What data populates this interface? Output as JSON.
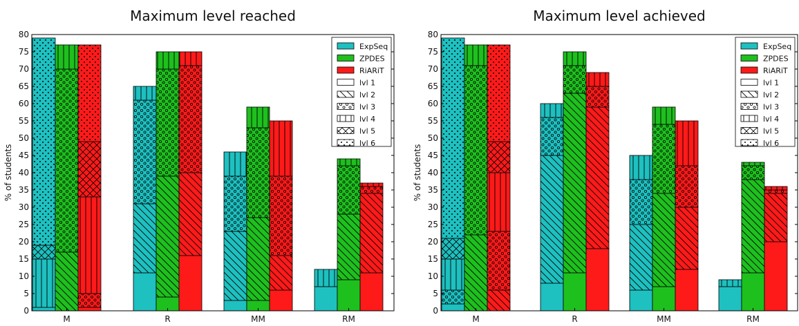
{
  "chart_data": [
    {
      "type": "bar",
      "title": "Maximum level reached",
      "xlabel": "",
      "ylabel": "% of students",
      "ylim": [
        0,
        80
      ],
      "yticks": [
        0,
        5,
        10,
        15,
        20,
        25,
        30,
        35,
        40,
        45,
        50,
        55,
        60,
        65,
        70,
        75,
        80
      ],
      "categories": [
        "M",
        "R",
        "MM",
        "RM"
      ],
      "stack_order": "lvl 1 at bottom up to lvl 6 at top; values are segment heights in % of students",
      "series": [
        {
          "name": "ExpSeq",
          "segments": {
            "M": [
              {
                "level": "lvl 1",
                "value": 1
              },
              {
                "level": "lvl 4",
                "value": 14
              },
              {
                "level": "lvl 5",
                "value": 4
              },
              {
                "level": "lvl 6",
                "value": 60
              }
            ],
            "R": [
              {
                "level": "lvl 1",
                "value": 11
              },
              {
                "level": "lvl 2",
                "value": 20
              },
              {
                "level": "lvl 3",
                "value": 30
              },
              {
                "level": "lvl 4",
                "value": 4
              }
            ],
            "MM": [
              {
                "level": "lvl 1",
                "value": 3
              },
              {
                "level": "lvl 2",
                "value": 20
              },
              {
                "level": "lvl 3",
                "value": 16
              },
              {
                "level": "lvl 4",
                "value": 7
              }
            ],
            "RM": [
              {
                "level": "lvl 1",
                "value": 7
              },
              {
                "level": "lvl 4",
                "value": 5
              }
            ]
          }
        },
        {
          "name": "ZPDES",
          "segments": {
            "M": [
              {
                "level": "lvl 2",
                "value": 17
              },
              {
                "level": "lvl 3",
                "value": 53
              },
              {
                "level": "lvl 4",
                "value": 7
              }
            ],
            "R": [
              {
                "level": "lvl 1",
                "value": 4
              },
              {
                "level": "lvl 2",
                "value": 35
              },
              {
                "level": "lvl 3",
                "value": 31
              },
              {
                "level": "lvl 4",
                "value": 5
              }
            ],
            "MM": [
              {
                "level": "lvl 1",
                "value": 3
              },
              {
                "level": "lvl 2",
                "value": 24
              },
              {
                "level": "lvl 3",
                "value": 26
              },
              {
                "level": "lvl 4",
                "value": 6
              }
            ],
            "RM": [
              {
                "level": "lvl 1",
                "value": 9
              },
              {
                "level": "lvl 2",
                "value": 19
              },
              {
                "level": "lvl 3",
                "value": 14
              },
              {
                "level": "lvl 4",
                "value": 2
              }
            ]
          }
        },
        {
          "name": "RiARiT",
          "segments": {
            "M": [
              {
                "level": "lvl 1",
                "value": 1
              },
              {
                "level": "lvl 3",
                "value": 4
              },
              {
                "level": "lvl 4",
                "value": 28
              },
              {
                "level": "lvl 5",
                "value": 16
              },
              {
                "level": "lvl 6",
                "value": 28
              }
            ],
            "R": [
              {
                "level": "lvl 1",
                "value": 16
              },
              {
                "level": "lvl 2",
                "value": 24
              },
              {
                "level": "lvl 3",
                "value": 31
              },
              {
                "level": "lvl 4",
                "value": 4
              }
            ],
            "MM": [
              {
                "level": "lvl 1",
                "value": 6
              },
              {
                "level": "lvl 2",
                "value": 10
              },
              {
                "level": "lvl 3",
                "value": 23
              },
              {
                "level": "lvl 4",
                "value": 16
              }
            ],
            "RM": [
              {
                "level": "lvl 1",
                "value": 11
              },
              {
                "level": "lvl 2",
                "value": 23
              },
              {
                "level": "lvl 3",
                "value": 2
              },
              {
                "level": "lvl 4",
                "value": 1
              }
            ]
          }
        }
      ],
      "legend_position": "top-right"
    },
    {
      "type": "bar",
      "title": "Maximum level achieved",
      "xlabel": "",
      "ylabel": "% of students",
      "ylim": [
        0,
        80
      ],
      "yticks": [
        0,
        5,
        10,
        15,
        20,
        25,
        30,
        35,
        40,
        45,
        50,
        55,
        60,
        65,
        70,
        75,
        80
      ],
      "categories": [
        "M",
        "R",
        "MM",
        "RM"
      ],
      "stack_order": "lvl 1 at bottom up to lvl 6 at top; values are segment heights in % of students",
      "series": [
        {
          "name": "ExpSeq",
          "segments": {
            "M": [
              {
                "level": "lvl 1",
                "value": 2
              },
              {
                "level": "lvl 3",
                "value": 4
              },
              {
                "level": "lvl 4",
                "value": 9
              },
              {
                "level": "lvl 5",
                "value": 6
              },
              {
                "level": "lvl 6",
                "value": 58
              }
            ],
            "R": [
              {
                "level": "lvl 1",
                "value": 8
              },
              {
                "level": "lvl 2",
                "value": 37
              },
              {
                "level": "lvl 3",
                "value": 11
              },
              {
                "level": "lvl 4",
                "value": 4
              }
            ],
            "MM": [
              {
                "level": "lvl 1",
                "value": 6
              },
              {
                "level": "lvl 2",
                "value": 19
              },
              {
                "level": "lvl 3",
                "value": 13
              },
              {
                "level": "lvl 4",
                "value": 7
              }
            ],
            "RM": [
              {
                "level": "lvl 1",
                "value": 7
              },
              {
                "level": "lvl 4",
                "value": 2
              }
            ]
          }
        },
        {
          "name": "ZPDES",
          "segments": {
            "M": [
              {
                "level": "lvl 2",
                "value": 22
              },
              {
                "level": "lvl 3",
                "value": 49
              },
              {
                "level": "lvl 4",
                "value": 6
              }
            ],
            "R": [
              {
                "level": "lvl 1",
                "value": 11
              },
              {
                "level": "lvl 2",
                "value": 52
              },
              {
                "level": "lvl 3",
                "value": 8
              },
              {
                "level": "lvl 4",
                "value": 4
              }
            ],
            "MM": [
              {
                "level": "lvl 1",
                "value": 7
              },
              {
                "level": "lvl 2",
                "value": 27
              },
              {
                "level": "lvl 3",
                "value": 20
              },
              {
                "level": "lvl 4",
                "value": 5
              }
            ],
            "RM": [
              {
                "level": "lvl 1",
                "value": 11
              },
              {
                "level": "lvl 2",
                "value": 27
              },
              {
                "level": "lvl 3",
                "value": 4
              },
              {
                "level": "lvl 4",
                "value": 1
              }
            ]
          }
        },
        {
          "name": "RiARiT",
          "segments": {
            "M": [
              {
                "level": "lvl 2",
                "value": 6
              },
              {
                "level": "lvl 3",
                "value": 17
              },
              {
                "level": "lvl 4",
                "value": 17
              },
              {
                "level": "lvl 5",
                "value": 9
              },
              {
                "level": "lvl 6",
                "value": 28
              }
            ],
            "R": [
              {
                "level": "lvl 1",
                "value": 18
              },
              {
                "level": "lvl 2",
                "value": 41
              },
              {
                "level": "lvl 3",
                "value": 6
              },
              {
                "level": "lvl 4",
                "value": 4
              }
            ],
            "MM": [
              {
                "level": "lvl 1",
                "value": 12
              },
              {
                "level": "lvl 2",
                "value": 18
              },
              {
                "level": "lvl 3",
                "value": 12
              },
              {
                "level": "lvl 4",
                "value": 13
              }
            ],
            "RM": [
              {
                "level": "lvl 1",
                "value": 20
              },
              {
                "level": "lvl 2",
                "value": 14
              },
              {
                "level": "lvl 3",
                "value": 1
              },
              {
                "level": "lvl 4",
                "value": 1
              }
            ]
          }
        }
      ],
      "legend_position": "top-right"
    }
  ],
  "legend": {
    "series": [
      {
        "name": "ExpSeq",
        "color": "#1ec0c0"
      },
      {
        "name": "ZPDES",
        "color": "#1ec01e"
      },
      {
        "name": "RiARiT",
        "color": "#ff1a1a"
      }
    ],
    "levels": [
      {
        "name": "lvl 1",
        "pattern": "none"
      },
      {
        "name": "lvl 2",
        "pattern": "diagonal-hatch"
      },
      {
        "name": "lvl 3",
        "pattern": "small-circles"
      },
      {
        "name": "lvl 4",
        "pattern": "vertical-lines"
      },
      {
        "name": "lvl 5",
        "pattern": "crosshatch"
      },
      {
        "name": "lvl 6",
        "pattern": "dots"
      }
    ]
  }
}
